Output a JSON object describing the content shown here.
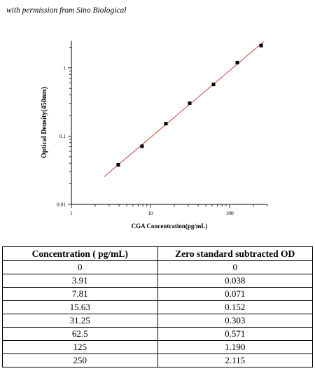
{
  "credit_text": "with permission from Sino Biological",
  "chart_data": {
    "type": "scatter",
    "title": "",
    "xlabel": "CGA Concentration(pg/mL)",
    "ylabel": "Optical Density(450nm)",
    "x_scale": "log",
    "y_scale": "log",
    "xlim": [
      1,
      300
    ],
    "ylim": [
      0.01,
      2.5
    ],
    "x_ticks": [
      1,
      10,
      100
    ],
    "x_tick_labels": [
      "1",
      "10",
      "100"
    ],
    "y_ticks": [
      0.01,
      0.1,
      1
    ],
    "y_tick_labels": [
      "0.01",
      "0.1",
      "1"
    ],
    "grid": false,
    "series": [
      {
        "x": [
          3.91,
          7.81,
          15.63,
          31.25,
          62.5,
          125,
          250
        ],
        "y": [
          0.038,
          0.071,
          0.152,
          0.303,
          0.571,
          1.19,
          2.115
        ]
      }
    ],
    "fit_line": {
      "x_range": [
        2.6,
        270
      ],
      "color": "#c0392b"
    },
    "marker_color": "#000000"
  },
  "table": {
    "headers": [
      "Concentration ( pg/mL)",
      "Zero standard subtracted OD"
    ],
    "rows": [
      [
        "0",
        "0"
      ],
      [
        "3.91",
        "0.038"
      ],
      [
        "7.81",
        "0.071"
      ],
      [
        "15.63",
        "0.152"
      ],
      [
        "31.25",
        "0.303"
      ],
      [
        "62.5",
        "0.571"
      ],
      [
        "125",
        "1.190"
      ],
      [
        "250",
        "2.115"
      ]
    ]
  }
}
